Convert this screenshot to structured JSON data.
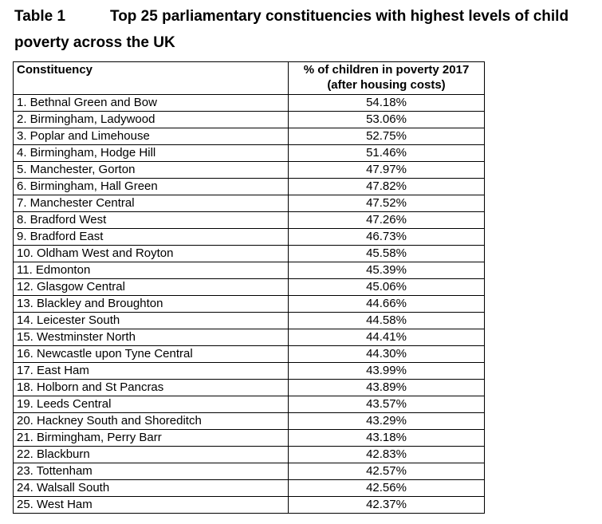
{
  "caption": {
    "label": "Table 1",
    "title_line1": "Top 25 parliamentary constituencies with highest levels of child",
    "title_line2": "poverty across the UK"
  },
  "table": {
    "headers": {
      "constituency": "Constituency",
      "percent_line1": "% of children in poverty 2017",
      "percent_line2": "(after housing costs)"
    },
    "rows": [
      {
        "name": "1. Bethnal Green and Bow",
        "value": "54.18%"
      },
      {
        "name": "2. Birmingham, Ladywood",
        "value": "53.06%"
      },
      {
        "name": "3. Poplar and Limehouse",
        "value": "52.75%"
      },
      {
        "name": "4. Birmingham, Hodge Hill",
        "value": "51.46%"
      },
      {
        "name": "5. Manchester, Gorton",
        "value": "47.97%"
      },
      {
        "name": "6. Birmingham, Hall Green",
        "value": "47.82%"
      },
      {
        "name": "7. Manchester Central",
        "value": "47.52%"
      },
      {
        "name": "8. Bradford West",
        "value": "47.26%"
      },
      {
        "name": "9. Bradford East",
        "value": "46.73%"
      },
      {
        "name": "10. Oldham West and Royton",
        "value": "45.58%"
      },
      {
        "name": "11. Edmonton",
        "value": "45.39%"
      },
      {
        "name": "12. Glasgow Central",
        "value": "45.06%"
      },
      {
        "name": "13. Blackley and Broughton",
        "value": "44.66%"
      },
      {
        "name": "14. Leicester South",
        "value": "44.58%"
      },
      {
        "name": "15. Westminster North",
        "value": "44.41%"
      },
      {
        "name": "16. Newcastle upon Tyne Central",
        "value": "44.30%"
      },
      {
        "name": "17. East Ham",
        "value": "43.99%"
      },
      {
        "name": "18. Holborn and St Pancras",
        "value": "43.89%"
      },
      {
        "name": "19. Leeds Central",
        "value": "43.57%"
      },
      {
        "name": "20. Hackney South and Shoreditch",
        "value": "43.29%"
      },
      {
        "name": "21. Birmingham, Perry Barr",
        "value": "43.18%"
      },
      {
        "name": "22. Blackburn",
        "value": "42.83%"
      },
      {
        "name": "23. Tottenham",
        "value": "42.57%"
      },
      {
        "name": "24. Walsall South",
        "value": "42.56%"
      },
      {
        "name": "25. West Ham",
        "value": "42.37%"
      }
    ]
  }
}
